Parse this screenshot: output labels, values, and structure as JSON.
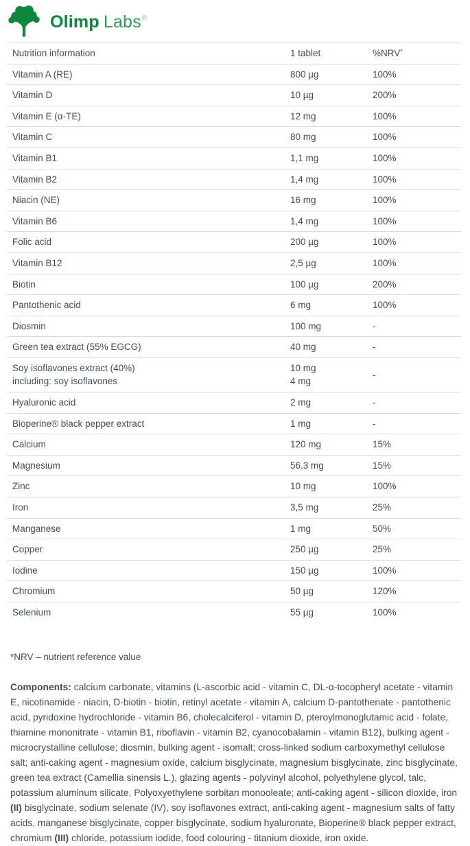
{
  "logo": {
    "brand_bold": "Olimp",
    "brand_light": "Labs",
    "registered_mark": "®"
  },
  "colors": {
    "brand_green": "#0d873b",
    "brand_green_light": "#2f9c55",
    "text": "#3f4d5a",
    "divider": "#dadde0"
  },
  "table": {
    "header": {
      "name": "Nutrition information",
      "amount": "1 tablet",
      "nrv": "%NRV",
      "nrv_sup": "*"
    },
    "rows": [
      {
        "name": "Vitamin A (RE)",
        "amount": "800 µg",
        "nrv": "100%"
      },
      {
        "name": "Vitamin D",
        "amount": "10 µg",
        "nrv": "200%"
      },
      {
        "name": "Vitamin E (α-TE)",
        "amount": "12 mg",
        "nrv": "100%"
      },
      {
        "name": "Vitamin C",
        "amount": "80 mg",
        "nrv": "100%"
      },
      {
        "name": "Vitamin B1",
        "amount": "1,1 mg",
        "nrv": "100%"
      },
      {
        "name": "Vitamin B2",
        "amount": "1,4 mg",
        "nrv": "100%"
      },
      {
        "name": "Niacin (NE)",
        "amount": "16 mg",
        "nrv": "100%"
      },
      {
        "name": "Vitamin B6",
        "amount": "1,4 mg",
        "nrv": "100%"
      },
      {
        "name": "Folic acid",
        "amount": "200 µg",
        "nrv": "100%"
      },
      {
        "name": "Vitamin B12",
        "amount": "2,5 µg",
        "nrv": "100%"
      },
      {
        "name": "Biotin",
        "amount": "100 µg",
        "nrv": "200%"
      },
      {
        "name": "Pantothenic acid",
        "amount": "6 mg",
        "nrv": "100%"
      },
      {
        "name": "Diosmin",
        "amount": "100 mg",
        "nrv": "-"
      },
      {
        "name": "Green tea extract (55% EGCG)",
        "amount": "40 mg",
        "nrv": "-"
      },
      {
        "name": "Soy isoflavones extract (40%)\nincluding: soy isoflavones",
        "amount": "10 mg\n4 mg",
        "nrv": "-"
      },
      {
        "name": "Hyaluronic acid",
        "amount": "2 mg",
        "nrv": "-"
      },
      {
        "name": "Bioperine® black pepper extract",
        "amount": "1 mg",
        "nrv": "-"
      },
      {
        "name": "Calcium",
        "amount": "120 mg",
        "nrv": "15%"
      },
      {
        "name": "Magnesium",
        "amount": "56,3 mg",
        "nrv": "15%"
      },
      {
        "name": "Zinc",
        "amount": "10 mg",
        "nrv": "100%"
      },
      {
        "name": "Iron",
        "amount": "3,5 mg",
        "nrv": "25%"
      },
      {
        "name": "Manganese",
        "amount": "1 mg",
        "nrv": "50%"
      },
      {
        "name": "Copper",
        "amount": "250 µg",
        "nrv": "25%"
      },
      {
        "name": "Iodine",
        "amount": "150 µg",
        "nrv": "100%"
      },
      {
        "name": "Chromium",
        "amount": "50 µg",
        "nrv": "120%"
      },
      {
        "name": "Selenium",
        "amount": "55 µg",
        "nrv": "100%"
      }
    ]
  },
  "footnote": "*NRV – nutrient reference value",
  "components": {
    "segments": [
      {
        "text": "Components:",
        "bold": true
      },
      {
        "text": " calcium carbonate, vitamins (L-ascorbic acid - vitamin C, DL-α-tocopheryl acetate - vitamin E, nicotinamide - niacin, D-biotin - biotin, retinyl acetate - vitamin A, calcium D-pantothenate - pantothenic acid, pyridoxine hydrochloride - vitamin B6, cholecalciferol - vitamin D, pteroylmonoglutamic acid - folate, thiamine mononitrate - vitamin B1, riboflavin - vitamin B2, cyanocobalamin - vitamin B12), bulking agent - microcrystalline cellulose; diosmin, bulking agent - isomalt; cross-linked sodium carboxymethyl cellulose salt; anti-caking agent - magnesium oxide, calcium bisglycinate, magnesium bisglycinate, zinc bisglycinate, green tea extract (Camellia sinensis L.), glazing agents - polyvinyl alcohol, polyethylene glycol, talc, potassium aluminum silicate, Polyoxyethylene sorbitan monooleate; anti-caking agent - silicon dioxide, iron ",
        "bold": false
      },
      {
        "text": "(II)",
        "bold": true
      },
      {
        "text": " bisglycinate, sodium selenate (IV), soy isoflavones extract, anti-caking agent - magnesium salts of fatty acids, manganese bisglycinate, copper bisglycinate, sodium hyaluronate, Bioperine® black pepper extract, chromium ",
        "bold": false
      },
      {
        "text": "(III)",
        "bold": true
      },
      {
        "text": " chloride, potassium iodide, food colouring - titanium dioxide, iron oxide.",
        "bold": false
      }
    ]
  }
}
